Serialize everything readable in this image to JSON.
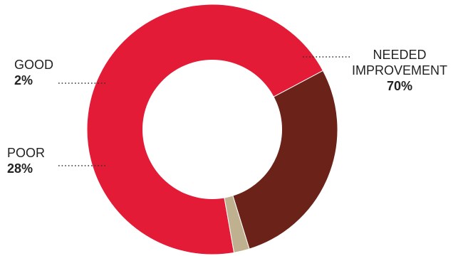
{
  "chart_data": {
    "type": "pie",
    "title": "",
    "categories": [
      "NEEDED IMPROVEMENT",
      "POOR",
      "GOOD"
    ],
    "values": [
      70,
      28,
      2
    ],
    "value_labels": [
      "70%",
      "28%",
      "2%"
    ],
    "label_lines": [
      [
        "NEEDED",
        "IMPROVEMENT"
      ],
      [
        "POOR"
      ],
      [
        "GOOD"
      ]
    ],
    "colors": [
      "#e31b36",
      "#6b2218",
      "#bfb08f"
    ],
    "donut": true,
    "legend": "none"
  }
}
